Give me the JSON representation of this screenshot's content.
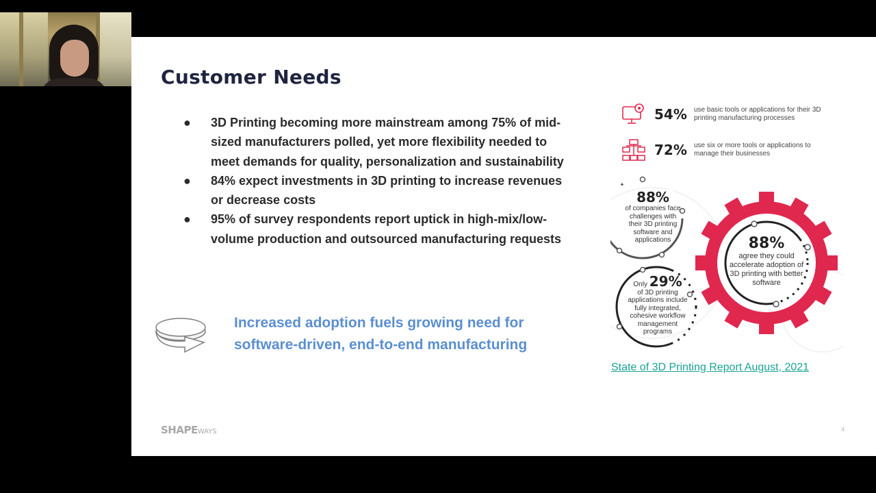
{
  "slide": {
    "title": "Customer Needs",
    "bullets": [
      "3D Printing becoming more mainstream among 75% of mid-sized manufacturers polled, yet more flexibility needed to meet demands for quality, personalization and sustainability",
      "84% expect investments in 3D printing to increase revenues or decrease costs",
      "95% of survey respondents report uptick in high-mix/low-volume production and outsourced manufacturing requests"
    ],
    "bullet_glyph": "●",
    "callout": "Increased adoption fuels growing need for software-driven, end-to-end manufacturing",
    "logo_main": "SHAPE",
    "logo_small": "WAYS",
    "page_number": "4",
    "report_link": "State of 3D Printing Report  August, 2021"
  },
  "infographic": {
    "stat1": {
      "pct": "54%",
      "text": "use basic tools or applications for their 3D printing manufacturing processes",
      "icon": "computer-gear-icon"
    },
    "stat2": {
      "pct": "72%",
      "text": "use six or more tools or applications to manage their businesses",
      "icon": "network-icon"
    },
    "circle1": {
      "pct": "88%",
      "text": "of companies face challenges with their 3D printing software and applications"
    },
    "circle2": {
      "prefix": "Only",
      "pct": "29%",
      "text": "of 3D printing applications include fully integrated, cohesive workflow management programs"
    },
    "gear": {
      "pct": "88%",
      "text": "agree they could accelerate adoption of 3D printing with better software"
    }
  },
  "colors": {
    "title": "#1f2440",
    "callout": "#5b8fd0",
    "accent_red": "#e0284f",
    "link": "#1aa394"
  }
}
